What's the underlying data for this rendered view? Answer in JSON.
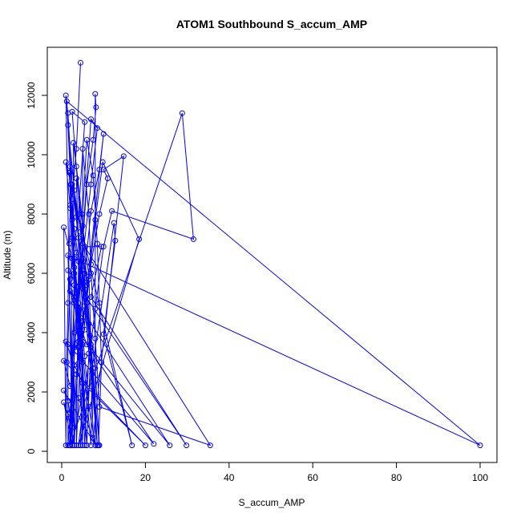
{
  "chart_data": {
    "type": "scatter",
    "title": "ATOM1 Southbound S_accum_AMP",
    "xlabel": "S_accum_AMP",
    "ylabel": "Altitude (m)",
    "xlim": [
      0,
      103
    ],
    "ylim": [
      0,
      13100
    ],
    "xticks": [
      0,
      20,
      40,
      60,
      80,
      100
    ],
    "yticks": [
      0,
      2000,
      4000,
      6000,
      8000,
      10000,
      12000
    ],
    "colors": {
      "series": "#0000ff",
      "axes": "#000000"
    },
    "series": [
      {
        "points": [
          [
            4.5,
            13100
          ],
          [
            3.5,
            10200
          ],
          [
            2.5,
            8500
          ],
          [
            3.0,
            6000
          ],
          [
            4.5,
            4500
          ],
          [
            5.5,
            3200
          ],
          [
            6.5,
            1500
          ],
          [
            8.0,
            200
          ],
          [
            8.0,
            12050
          ],
          [
            8.2,
            11600
          ],
          [
            7.5,
            10500
          ],
          [
            6.0,
            9000
          ],
          [
            5.0,
            7000
          ],
          [
            4.0,
            5000
          ],
          [
            3.0,
            3500
          ],
          [
            2.5,
            200
          ],
          [
            1.0,
            12000
          ],
          [
            1.5,
            11400
          ],
          [
            2.5,
            9000
          ],
          [
            4.0,
            7200
          ],
          [
            6.0,
            5000
          ],
          [
            8.0,
            2800
          ],
          [
            9.0,
            200
          ],
          [
            1.5,
            11000
          ],
          [
            2.0,
            9400
          ],
          [
            3.0,
            7500
          ],
          [
            5.0,
            5500
          ],
          [
            7.0,
            3500
          ],
          [
            8.5,
            200
          ],
          [
            2.5,
            11450
          ],
          [
            5.5,
            11100
          ],
          [
            4.0,
            8000
          ],
          [
            2.0,
            5800
          ],
          [
            1.5,
            3600
          ],
          [
            1.5,
            200
          ],
          [
            7.0,
            11200
          ],
          [
            8.5,
            10900
          ],
          [
            7.0,
            9000
          ],
          [
            5.0,
            6500
          ],
          [
            3.0,
            4000
          ],
          [
            2.0,
            1300
          ],
          [
            2.0,
            200
          ],
          [
            10.0,
            10700
          ],
          [
            9.0,
            9500
          ],
          [
            7.0,
            8100
          ],
          [
            5.5,
            6000
          ],
          [
            4.0,
            3700
          ],
          [
            3.0,
            200
          ],
          [
            2.8,
            10400
          ],
          [
            3.5,
            9600
          ],
          [
            4.8,
            8000
          ],
          [
            6.0,
            5700
          ],
          [
            7.0,
            3400
          ],
          [
            7.5,
            450
          ],
          [
            14.8,
            9950
          ],
          [
            10.0,
            9500
          ],
          [
            11.0,
            9200
          ],
          [
            9.0,
            8000
          ],
          [
            7.0,
            6300
          ],
          [
            5.0,
            4400
          ],
          [
            3.5,
            2600
          ],
          [
            2.0,
            200
          ],
          [
            28.8,
            11400
          ],
          [
            31.5,
            7150
          ],
          [
            12.0,
            8100
          ],
          [
            10.0,
            6900
          ],
          [
            8.0,
            4800
          ],
          [
            4.0,
            200
          ],
          [
            18.5,
            7150
          ],
          [
            9.8,
            9750
          ],
          [
            8.0,
            7800
          ],
          [
            6.5,
            5800
          ],
          [
            5.0,
            3600
          ],
          [
            4.5,
            200
          ],
          [
            12.5,
            7700
          ],
          [
            12.8,
            7100
          ],
          [
            10.0,
            3950
          ],
          [
            16.8,
            200
          ],
          [
            1.0,
            9750
          ],
          [
            2.0,
            8300
          ],
          [
            3.0,
            6500
          ],
          [
            4.0,
            4700
          ],
          [
            5.0,
            3000
          ],
          [
            6.0,
            200
          ],
          [
            1.8,
            9400
          ],
          [
            2.5,
            7200
          ],
          [
            3.0,
            5200
          ],
          [
            4.0,
            3500
          ],
          [
            5.0,
            2000
          ],
          [
            2.5,
            200
          ],
          [
            2.2,
            9000
          ],
          [
            1.8,
            7000
          ],
          [
            1.5,
            5000
          ],
          [
            1.2,
            3000
          ],
          [
            1.0,
            200
          ],
          [
            0.5,
            7550
          ],
          [
            2.5,
            6500
          ],
          [
            3.5,
            5200
          ],
          [
            5.0,
            200
          ],
          [
            5.0,
            10200
          ],
          [
            6.5,
            8000
          ],
          [
            7.0,
            6000
          ],
          [
            8.0,
            3800
          ],
          [
            9.0,
            1500
          ],
          [
            35.5,
            200
          ],
          [
            5.5,
            6900
          ],
          [
            9.5,
            6900
          ],
          [
            7.0,
            5200
          ],
          [
            29.8,
            200
          ],
          [
            1.5,
            6100
          ],
          [
            3.0,
            5000
          ],
          [
            4.5,
            3900
          ],
          [
            25.8,
            200
          ],
          [
            2.0,
            5400
          ],
          [
            4.0,
            4400
          ],
          [
            6.0,
            3600
          ],
          [
            22.0,
            250
          ],
          [
            1.0,
            3700
          ],
          [
            3.0,
            2900
          ],
          [
            5.0,
            2300
          ],
          [
            20.0,
            200
          ],
          [
            0.5,
            3050
          ],
          [
            2.0,
            2200
          ],
          [
            4.0,
            1800
          ],
          [
            8.0,
            200
          ],
          [
            0.5,
            2050
          ],
          [
            1.5,
            1700
          ],
          [
            2.5,
            800
          ],
          [
            2.5,
            200
          ],
          [
            0.5,
            1650
          ],
          [
            1.5,
            1250
          ],
          [
            3.0,
            200
          ],
          [
            1.5,
            6600
          ],
          [
            100.0,
            200
          ],
          [
            1.2,
            11800
          ],
          [
            2.0,
            9600
          ],
          [
            3.5,
            7900
          ],
          [
            5.0,
            6100
          ],
          [
            6.5,
            4300
          ],
          [
            7.5,
            2800
          ],
          [
            8.5,
            200
          ],
          [
            3.0,
            8800
          ],
          [
            4.5,
            7400
          ],
          [
            6.0,
            5600
          ],
          [
            6.8,
            3900
          ],
          [
            7.2,
            2600
          ],
          [
            7.0,
            200
          ],
          [
            2.0,
            8200
          ],
          [
            3.5,
            6700
          ],
          [
            5.5,
            4900
          ],
          [
            6.5,
            3300
          ],
          [
            5.5,
            200
          ],
          [
            3.5,
            9200
          ],
          [
            5.0,
            7600
          ],
          [
            6.5,
            5900
          ],
          [
            7.0,
            3600
          ],
          [
            6.0,
            200
          ],
          [
            2.5,
            7800
          ],
          [
            3.0,
            6200
          ],
          [
            3.8,
            4800
          ],
          [
            4.5,
            3400
          ],
          [
            3.5,
            200
          ],
          [
            4.0,
            6400
          ],
          [
            5.5,
            4100
          ],
          [
            2.5,
            3300
          ],
          [
            2.0,
            200
          ],
          [
            3.0,
            5600
          ],
          [
            4.5,
            3200
          ],
          [
            3.0,
            2900
          ],
          [
            1.8,
            200
          ],
          [
            6.0,
            10500
          ],
          [
            7.5,
            9300
          ],
          [
            8.5,
            7000
          ],
          [
            9.0,
            5000
          ],
          [
            9.5,
            3000
          ],
          [
            8.8,
            200
          ]
        ]
      }
    ]
  }
}
